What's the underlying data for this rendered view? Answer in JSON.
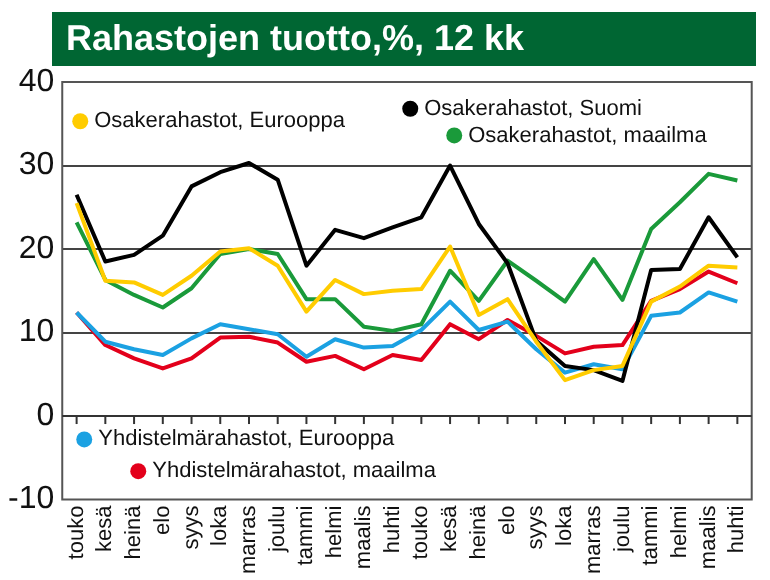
{
  "chart_data": {
    "type": "line",
    "title": "Rahastojen tuotto,%, 12 kk",
    "categories": [
      "touko",
      "kesä",
      "heinä",
      "elo",
      "syys",
      "loka",
      "marras",
      "joulu",
      "tammi",
      "helmi",
      "maalis",
      "huhti",
      "touko",
      "kesä",
      "heinä",
      "elo",
      "syys",
      "loka",
      "marras",
      "joulu",
      "tammi",
      "helmi",
      "maalis",
      "huhti"
    ],
    "series": [
      {
        "name": "Osakerahastot, Eurooppa",
        "color": "#ffcc00",
        "values": [
          25.5,
          16.2,
          16,
          14.5,
          16.8,
          19.7,
          20.1,
          18,
          12.5,
          16.3,
          14.6,
          15,
          15.2,
          20.3,
          12.1,
          14,
          8.9,
          4.3,
          5.5,
          6,
          13.7,
          15.5,
          18,
          17.8
        ]
      },
      {
        "name": "Osakerahastot, Suomi",
        "color": "#000000",
        "values": [
          26.5,
          18.5,
          19.3,
          21.6,
          27.5,
          29.2,
          30.3,
          28.3,
          18,
          22.3,
          21.3,
          22.6,
          23.8,
          30,
          23,
          18.3,
          9,
          6,
          5.5,
          4.2,
          17.5,
          17.6,
          23.8,
          19
        ]
      },
      {
        "name": "Osakerahastot, maailma",
        "color": "#1a9a3a",
        "values": [
          23.2,
          16.3,
          14.5,
          13,
          15.3,
          19.4,
          20,
          19.4,
          14,
          14,
          10.7,
          10.2,
          11,
          17.4,
          13.8,
          18.6,
          16.2,
          13.7,
          18.8,
          13.9,
          22.4,
          25.6,
          29,
          28.2
        ]
      },
      {
        "name": "Yhdistelmärahastot, Eurooppa",
        "color": "#1ba1e2",
        "values": [
          12.4,
          8.9,
          8,
          7.3,
          9.3,
          11,
          10.4,
          9.8,
          7.1,
          9.2,
          8.2,
          8.4,
          10.3,
          13.7,
          10.3,
          11.3,
          8,
          5.2,
          6.2,
          5.6,
          12,
          12.4,
          14.8,
          13.7
        ]
      },
      {
        "name": "Yhdistelmärahastot, maailma",
        "color": "#e3001b",
        "values": [
          12.4,
          8.5,
          6.9,
          5.7,
          6.9,
          9.4,
          9.5,
          8.8,
          6.5,
          7.2,
          5.6,
          7.3,
          6.7,
          11,
          9.2,
          11.5,
          9.6,
          7.5,
          8.3,
          8.5,
          13.8,
          15.2,
          17.3,
          15.9
        ]
      }
    ],
    "ylim": [
      -10,
      40
    ],
    "yticks": [
      -10,
      0,
      10,
      20,
      30,
      40
    ],
    "grid": "y",
    "legend": "top",
    "marker": "none",
    "line_style": "solid"
  }
}
